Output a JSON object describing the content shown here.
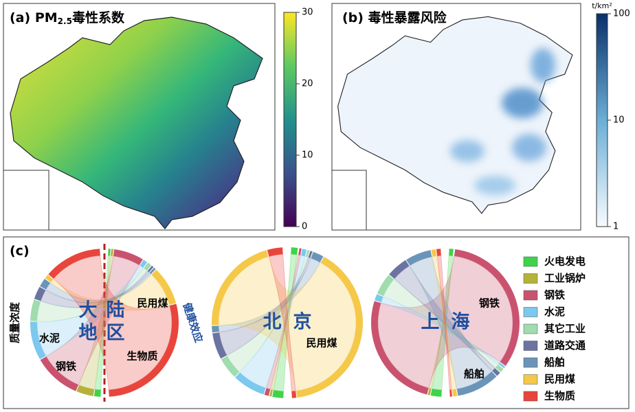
{
  "panel_a": {
    "label": "(a)",
    "title_main": "PM",
    "title_sub": "2.5",
    "title_tail": "毒性系数",
    "colorbar": {
      "lim": [
        0,
        30
      ],
      "ticks": [
        0,
        10,
        20,
        30
      ]
    }
  },
  "panel_b": {
    "label": "(b)",
    "title": "毒性暴露风险",
    "colorbar": {
      "unit": "t/km²",
      "scale": "log",
      "lim": [
        1,
        100
      ],
      "ticks": [
        1,
        10,
        100
      ]
    }
  },
  "panel_c": {
    "label": "(c)",
    "sources": [
      {
        "name": "火电发电",
        "color": "#3fd34a"
      },
      {
        "name": "工业锅炉",
        "color": "#b5b23a"
      },
      {
        "name": "钢铁",
        "color": "#c9536f"
      },
      {
        "name": "水泥",
        "color": "#7cc8ee"
      },
      {
        "name": "其它工业",
        "color": "#9fdcae"
      },
      {
        "name": "道路交通",
        "color": "#6b74a0"
      },
      {
        "name": "船舶",
        "color": "#6b95b8"
      },
      {
        "name": "民用煤",
        "color": "#f5c84a"
      },
      {
        "name": "生物质",
        "color": "#e8453c"
      }
    ],
    "diagrams": [
      {
        "center_chars": [
          "大",
          "陆",
          "地",
          "区"
        ],
        "left_label": "质量浓度",
        "right_label": "健康效应",
        "labels": [
          "民用煤",
          "水泥",
          "钢铁",
          "生物质"
        ],
        "left": [
          3,
          8,
          22,
          18,
          10,
          6,
          4,
          2,
          27
        ],
        "right": [
          1,
          1,
          14,
          2,
          2,
          1,
          1,
          18,
          60
        ]
      },
      {
        "center_chars": [
          "北",
          "京"
        ],
        "labels": [
          "民用煤"
        ],
        "left": [
          5,
          1,
          2,
          15,
          10,
          12,
          3,
          45,
          7
        ],
        "right": [
          3,
          0,
          1,
          2,
          1,
          1,
          5,
          85,
          2
        ]
      },
      {
        "center_chars": [
          "上",
          "海"
        ],
        "labels": [
          "钢铁",
          "船舶"
        ],
        "left": [
          5,
          1,
          55,
          3,
          10,
          10,
          12,
          2,
          2
        ],
        "right": [
          2,
          0,
          70,
          1,
          2,
          2,
          20,
          2,
          1
        ]
      }
    ]
  }
}
